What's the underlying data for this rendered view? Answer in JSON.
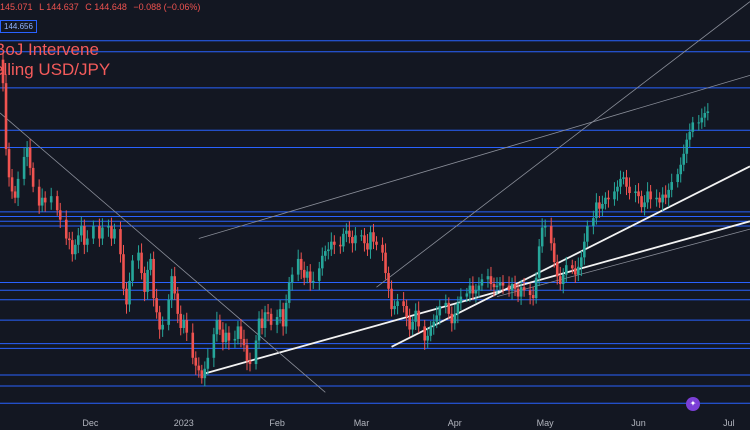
{
  "legend": {
    "ohlc_partial": "145.071",
    "low": "L 144.637",
    "close": "C 144.648",
    "change": "−0.088 (−0.06%)",
    "price_tag": "144.656"
  },
  "annotation": {
    "line1": "BoJ Intervene",
    "line2": "elling USD/JPY"
  },
  "colors": {
    "background": "#131722",
    "up": "#26a69a",
    "down": "#ef5350",
    "hline": "#2962ff",
    "trend": "#e8e8e8",
    "headline": "#f45b5b"
  },
  "chart_data": {
    "type": "candlestick",
    "title": "",
    "xlabel": "",
    "ylabel": "",
    "x_ticks": [
      "Dec",
      "2023",
      "Feb",
      "Mar",
      "Apr",
      "May",
      "Jun",
      "Jul"
    ],
    "x_tick_days": [
      30,
      61,
      92,
      120,
      151,
      181,
      212,
      242
    ],
    "x_range_days": [
      0,
      249
    ],
    "y_range": [
      126,
      152
    ],
    "grid": false,
    "close_path": [
      [
        0,
        148.2
      ],
      [
        1,
        146.7
      ],
      [
        2,
        142.5
      ],
      [
        3,
        140.7
      ],
      [
        4,
        139.8
      ],
      [
        5,
        139.4
      ],
      [
        6,
        140.6
      ],
      [
        8,
        142.0
      ],
      [
        9,
        142.6
      ],
      [
        10,
        141.3
      ],
      [
        11,
        140.1
      ],
      [
        13,
        138.9
      ],
      [
        14,
        139.4
      ],
      [
        15,
        139.1
      ],
      [
        17,
        139.5
      ],
      [
        19,
        138.6
      ],
      [
        20,
        138.0
      ],
      [
        22,
        136.8
      ],
      [
        23,
        136.7
      ],
      [
        24,
        135.8
      ],
      [
        25,
        136.4
      ],
      [
        26,
        137.0
      ],
      [
        27,
        137.6
      ],
      [
        28,
        136.4
      ],
      [
        29,
        136.8
      ],
      [
        31,
        137.6
      ],
      [
        33,
        136.8
      ],
      [
        34,
        137.5
      ],
      [
        36,
        137.6
      ],
      [
        37,
        136.8
      ],
      [
        38,
        137.4
      ],
      [
        40,
        135.8
      ],
      [
        41,
        133.6
      ],
      [
        42,
        132.6
      ],
      [
        43,
        134.1
      ],
      [
        44,
        135.4
      ],
      [
        46,
        135.9
      ],
      [
        47,
        134.6
      ],
      [
        48,
        133.4
      ],
      [
        49,
        134.8
      ],
      [
        50,
        135.5
      ],
      [
        51,
        133.0
      ],
      [
        52,
        132.1
      ],
      [
        53,
        131.0
      ],
      [
        54,
        131.3
      ],
      [
        56,
        132.9
      ],
      [
        57,
        134.4
      ],
      [
        58,
        133.3
      ],
      [
        59,
        132.0
      ],
      [
        60,
        131.1
      ],
      [
        61,
        131.6
      ],
      [
        62,
        130.8
      ],
      [
        64,
        129.2
      ],
      [
        65,
        128.7
      ],
      [
        66,
        128.4
      ],
      [
        67,
        127.9
      ],
      [
        68,
        128.5
      ],
      [
        69,
        129.2
      ],
      [
        71,
        130.7
      ],
      [
        72,
        131.6
      ],
      [
        73,
        131.0
      ],
      [
        74,
        130.2
      ],
      [
        75,
        130.8
      ],
      [
        76,
        130.3
      ],
      [
        78,
        130.4
      ],
      [
        79,
        131.2
      ],
      [
        80,
        130.4
      ],
      [
        81,
        130.0
      ],
      [
        82,
        129.0
      ],
      [
        83,
        128.8
      ],
      [
        85,
        130.3
      ],
      [
        86,
        131.7
      ],
      [
        87,
        131.1
      ],
      [
        88,
        132.1
      ],
      [
        89,
        132.0
      ],
      [
        90,
        131.3
      ],
      [
        92,
        131.8
      ],
      [
        93,
        132.3
      ],
      [
        94,
        131.2
      ],
      [
        95,
        132.7
      ],
      [
        96,
        134.0
      ],
      [
        97,
        134.5
      ],
      [
        99,
        135.5
      ],
      [
        100,
        134.8
      ],
      [
        101,
        134.3
      ],
      [
        102,
        134.7
      ],
      [
        103,
        134.0
      ],
      [
        104,
        134.1
      ],
      [
        106,
        134.9
      ],
      [
        107,
        135.7
      ],
      [
        108,
        136.0
      ],
      [
        109,
        136.1
      ],
      [
        110,
        136.6
      ],
      [
        111,
        136.4
      ],
      [
        113,
        136.3
      ],
      [
        114,
        137.1
      ],
      [
        115,
        137.3
      ],
      [
        116,
        136.9
      ],
      [
        117,
        136.5
      ],
      [
        118,
        137.0
      ],
      [
        120,
        137.0
      ],
      [
        121,
        136.5
      ],
      [
        122,
        136.1
      ],
      [
        123,
        137.2
      ],
      [
        124,
        136.6
      ],
      [
        125,
        136.4
      ],
      [
        127,
        135.9
      ],
      [
        128,
        134.6
      ],
      [
        129,
        133.6
      ],
      [
        130,
        132.3
      ],
      [
        131,
        132.5
      ],
      [
        132,
        132.8
      ],
      [
        134,
        132.5
      ],
      [
        135,
        131.8
      ],
      [
        136,
        131.0
      ],
      [
        137,
        131.5
      ],
      [
        138,
        132.2
      ],
      [
        139,
        131.2
      ],
      [
        141,
        130.3
      ],
      [
        142,
        130.6
      ],
      [
        143,
        131.2
      ],
      [
        144,
        131.5
      ],
      [
        145,
        131.9
      ],
      [
        146,
        132.5
      ],
      [
        148,
        132.7
      ],
      [
        149,
        132.0
      ],
      [
        150,
        131.4
      ],
      [
        151,
        132.0
      ],
      [
        152,
        132.7
      ],
      [
        153,
        133.1
      ],
      [
        155,
        133.3
      ],
      [
        156,
        133.8
      ],
      [
        157,
        133.3
      ],
      [
        158,
        133.5
      ],
      [
        159,
        133.8
      ],
      [
        160,
        134.2
      ],
      [
        162,
        134.4
      ],
      [
        163,
        133.9
      ],
      [
        164,
        133.7
      ],
      [
        165,
        133.8
      ],
      [
        166,
        134.0
      ],
      [
        167,
        133.8
      ],
      [
        169,
        133.5
      ],
      [
        170,
        133.9
      ],
      [
        171,
        133.6
      ],
      [
        172,
        133.1
      ],
      [
        173,
        133.7
      ],
      [
        174,
        133.5
      ],
      [
        176,
        133.2
      ],
      [
        177,
        133.0
      ],
      [
        178,
        134.3
      ],
      [
        179,
        136.3
      ],
      [
        180,
        137.5
      ],
      [
        181,
        137.6
      ],
      [
        183,
        136.5
      ],
      [
        184,
        135.3
      ],
      [
        185,
        134.4
      ],
      [
        186,
        133.9
      ],
      [
        187,
        134.5
      ],
      [
        188,
        135.1
      ],
      [
        190,
        134.9
      ],
      [
        191,
        134.5
      ],
      [
        192,
        135.0
      ],
      [
        193,
        135.6
      ],
      [
        194,
        136.6
      ],
      [
        195,
        137.6
      ],
      [
        197,
        138.1
      ],
      [
        198,
        139.1
      ],
      [
        199,
        138.7
      ],
      [
        200,
        139.0
      ],
      [
        201,
        139.4
      ],
      [
        202,
        139.3
      ],
      [
        204,
        139.8
      ],
      [
        205,
        140.1
      ],
      [
        206,
        140.6
      ],
      [
        207,
        140.7
      ],
      [
        208,
        140.1
      ],
      [
        209,
        139.7
      ],
      [
        211,
        139.8
      ],
      [
        212,
        139.5
      ],
      [
        213,
        138.8
      ],
      [
        214,
        139.1
      ],
      [
        215,
        139.8
      ],
      [
        216,
        139.3
      ],
      [
        218,
        139.4
      ],
      [
        219,
        139.1
      ],
      [
        220,
        139.6
      ],
      [
        221,
        139.4
      ],
      [
        222,
        139.9
      ],
      [
        223,
        140.4
      ],
      [
        225,
        140.9
      ],
      [
        226,
        141.5
      ],
      [
        227,
        142.2
      ],
      [
        228,
        143.1
      ],
      [
        229,
        143.6
      ],
      [
        230,
        144.2
      ],
      [
        232,
        144.2
      ],
      [
        233,
        144.5
      ],
      [
        234,
        144.8
      ],
      [
        235,
        144.9
      ]
    ],
    "horizontal_levels": [
      149.4,
      148.7,
      146.4,
      143.7,
      142.6,
      138.5,
      138.2,
      137.9,
      137.6,
      134.0,
      133.5,
      132.9,
      131.6,
      130.1,
      129.8,
      128.1,
      127.4,
      126.3
    ],
    "trendlines": [
      {
        "from": [
          66,
          136.8
        ],
        "to": [
          249,
          147.2
        ],
        "style": "thin"
      },
      {
        "from": [
          68,
          128.2
        ],
        "to": [
          249,
          137.9
        ],
        "style": "thick"
      },
      {
        "from": [
          130,
          129.9
        ],
        "to": [
          249,
          141.4
        ],
        "style": "thick"
      },
      {
        "from": [
          165,
          133.1
        ],
        "to": [
          249,
          137.4
        ],
        "style": "thin"
      },
      {
        "from": [
          0,
          144.8
        ],
        "to": [
          108,
          127.0
        ],
        "style": "thin"
      },
      {
        "from": [
          125,
          133.7
        ],
        "to": [
          249,
          151.9
        ],
        "style": "thin"
      }
    ]
  }
}
